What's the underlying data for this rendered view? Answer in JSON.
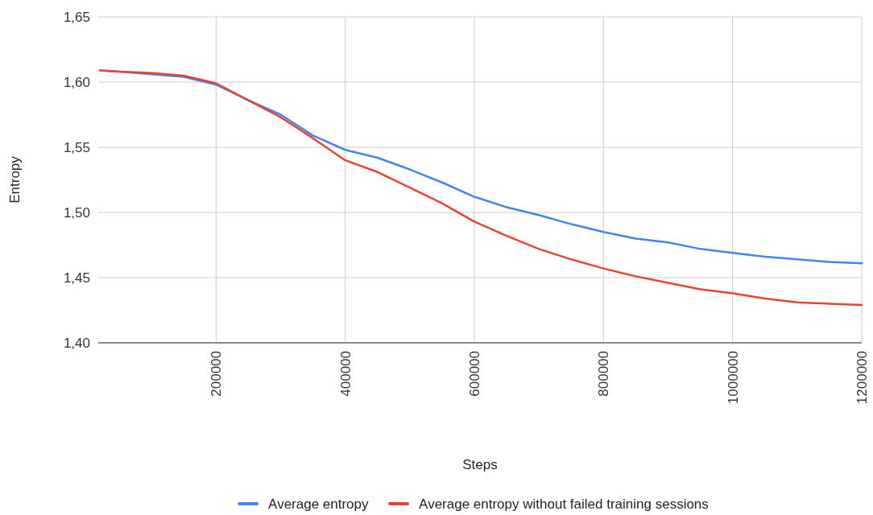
{
  "chart_data": {
    "type": "line",
    "xlabel": "Steps",
    "ylabel": "Entropy",
    "x": [
      20000,
      50000,
      100000,
      150000,
      200000,
      250000,
      300000,
      350000,
      400000,
      450000,
      500000,
      550000,
      600000,
      650000,
      700000,
      750000,
      800000,
      850000,
      900000,
      950000,
      1000000,
      1050000,
      1100000,
      1150000,
      1200000
    ],
    "series": [
      {
        "name": "Average entropy",
        "color": "#4285f4",
        "values": [
          1.609,
          1.608,
          1.606,
          1.604,
          1.598,
          1.586,
          1.575,
          1.559,
          1.548,
          1.542,
          1.533,
          1.523,
          1.512,
          1.504,
          1.498,
          1.491,
          1.485,
          1.48,
          1.477,
          1.472,
          1.469,
          1.466,
          1.464,
          1.462,
          1.461
        ]
      },
      {
        "name": "Average entropy without failed training sessions",
        "color": "#ea4335",
        "values": [
          1.609,
          1.608,
          1.607,
          1.605,
          1.599,
          1.586,
          1.573,
          1.557,
          1.54,
          1.531,
          1.519,
          1.507,
          1.493,
          1.482,
          1.472,
          1.464,
          1.457,
          1.451,
          1.446,
          1.441,
          1.438,
          1.434,
          1.431,
          1.43,
          1.429
        ]
      }
    ],
    "xlim": [
      17500,
      1200000
    ],
    "xticks": [
      200000,
      400000,
      600000,
      800000,
      1000000,
      1200000
    ],
    "ylim": [
      1.4,
      1.65
    ],
    "yticks": [
      {
        "value": 1.4,
        "label": "1,40"
      },
      {
        "value": 1.45,
        "label": "1,45"
      },
      {
        "value": 1.5,
        "label": "1,50"
      },
      {
        "value": 1.55,
        "label": "1,55"
      },
      {
        "value": 1.6,
        "label": "1,60"
      },
      {
        "value": 1.65,
        "label": "1,65"
      }
    ],
    "grid": true,
    "legend": "bottom",
    "marker": "none",
    "line_style": "solid"
  }
}
